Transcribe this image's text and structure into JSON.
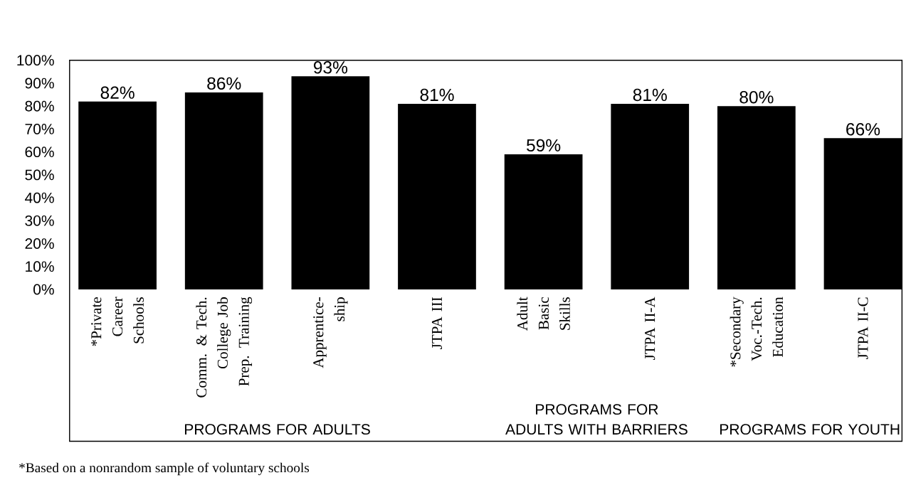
{
  "chart_data": {
    "type": "bar",
    "categories": [
      "*Private Career Schools",
      "Comm. & Tech. College Job Prep. Training",
      "Apprentice- ship",
      "JTPA III",
      "Adult Basic Skills",
      "JTPA II-A",
      "*Secondary Voc.-Tech. Education",
      "JTPA II-C"
    ],
    "values": [
      82,
      86,
      93,
      81,
      59,
      81,
      80,
      66
    ],
    "value_labels": [
      "82%",
      "86%",
      "93%",
      "81%",
      "59%",
      "81%",
      "80%",
      "66%"
    ],
    "color": "#000000",
    "ylim": [
      0,
      100
    ],
    "yticks": [
      {
        "value": 0,
        "label": "0%"
      },
      {
        "value": 10,
        "label": "10%"
      },
      {
        "value": 20,
        "label": "20%"
      },
      {
        "value": 30,
        "label": "30%"
      },
      {
        "value": 40,
        "label": "40%"
      },
      {
        "value": 50,
        "label": "50%"
      },
      {
        "value": 60,
        "label": "60%"
      },
      {
        "value": 70,
        "label": "70%"
      },
      {
        "value": 80,
        "label": "80%"
      },
      {
        "value": 90,
        "label": "90%"
      },
      {
        "value": 100,
        "label": "100%"
      }
    ],
    "grid": false,
    "annotations": [
      "PROGRAMS FOR ADULTS",
      "PROGRAMS FOR ADULTS WITH BARRIERS",
      "PROGRAMS FOR YOUTH",
      "*Based on a nonrandom sample of voluntary schools"
    ]
  }
}
